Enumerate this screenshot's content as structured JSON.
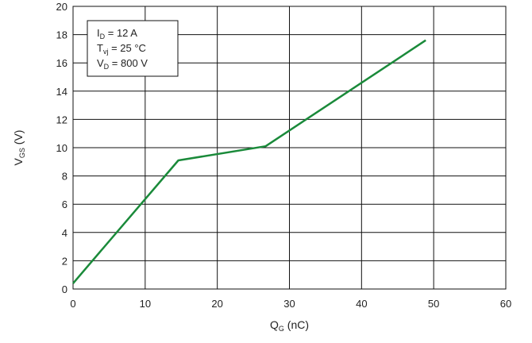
{
  "chart_data": {
    "type": "line",
    "xlabel": "Q",
    "xlabel_sub": "G",
    "xlabel_unit": " (nC)",
    "ylabel": "V",
    "ylabel_sub": "GS",
    "ylabel_unit": " (V)",
    "xlim": [
      0,
      60
    ],
    "ylim": [
      0,
      20
    ],
    "x_ticks": [
      "0",
      "10",
      "20",
      "30",
      "40",
      "50",
      "60"
    ],
    "y_ticks": [
      "0",
      "2",
      "4",
      "6",
      "8",
      "10",
      "12",
      "14",
      "16",
      "18",
      "20"
    ],
    "grid": true,
    "series": [
      {
        "color": "#1a8a3a",
        "points": [
          {
            "x": 0,
            "y": 0.4
          },
          {
            "x": 14.6,
            "y": 9.1
          },
          {
            "x": 26.7,
            "y": 10.1
          },
          {
            "x": 48.9,
            "y": 17.6
          }
        ]
      }
    ],
    "annotation": {
      "position": "top-left",
      "lines": [
        {
          "main": "I",
          "sub": "D",
          "rest": " = 12 A"
        },
        {
          "main": "T",
          "sub": "vj",
          "rest": " = 25 °C"
        },
        {
          "main": "V",
          "sub": "D",
          "rest": " = 800 V"
        }
      ]
    }
  }
}
